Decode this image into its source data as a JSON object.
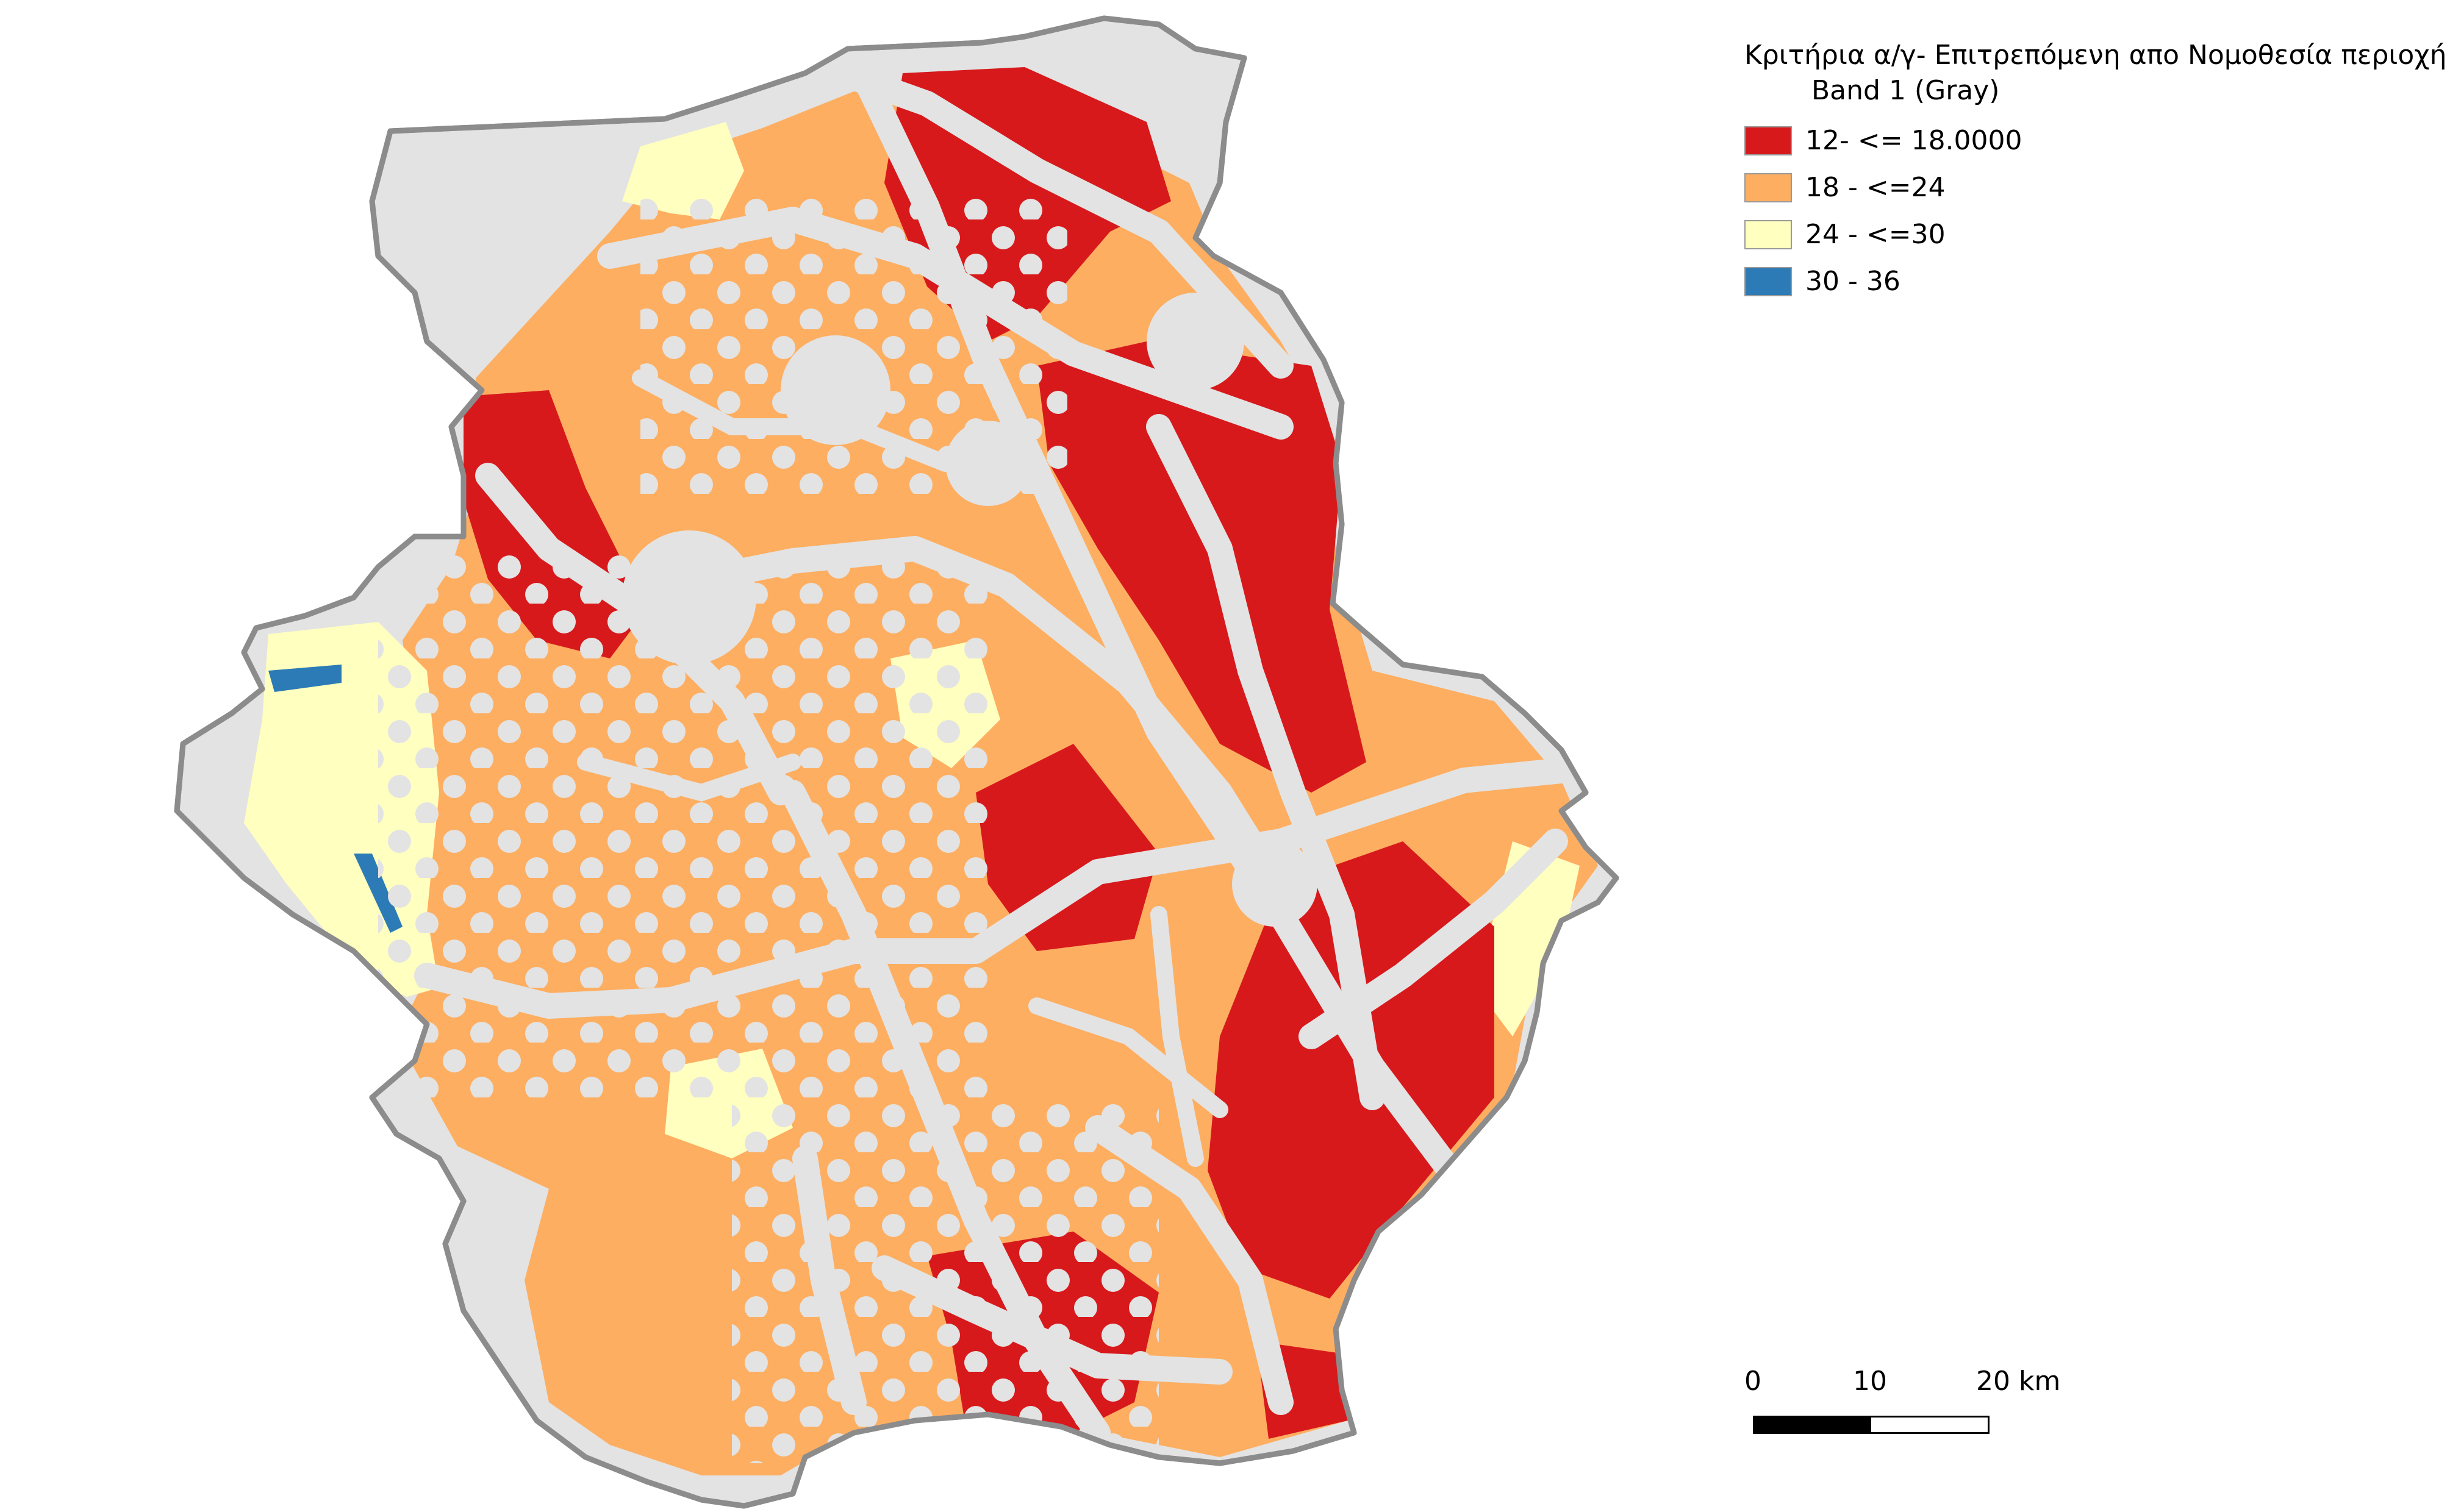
{
  "legend": {
    "title": "Κριτήρια α/γ- Επιτρεπόμενη απο Νομοθεσία περιοχή",
    "subtitle": "Band 1 (Gray)",
    "items": [
      {
        "label": "12- <= 18.0000",
        "color": "#d7191c"
      },
      {
        "label": "18 - <=24",
        "color": "#fdae61"
      },
      {
        "label": "24 - <=30",
        "color": "#ffffbf"
      },
      {
        "label": "30 - 36",
        "color": "#2c7bb6"
      }
    ]
  },
  "scalebar": {
    "ticks": [
      "0",
      "10",
      "20 km"
    ],
    "unit": "km"
  },
  "map": {
    "excluded_color": "#e3e3e3",
    "boundary_color": "#8c8c8c"
  }
}
